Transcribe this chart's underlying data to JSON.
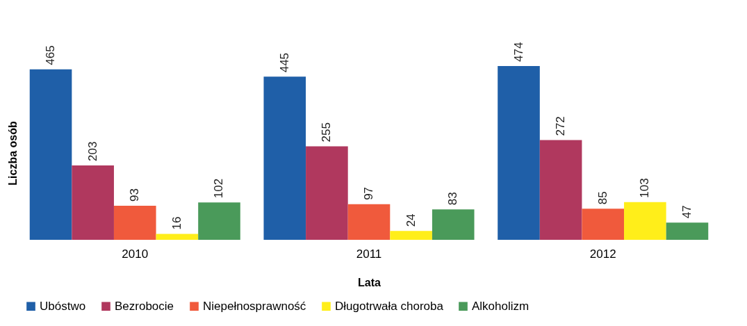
{
  "chart_data": {
    "type": "bar",
    "xlabel": "Lata",
    "ylabel": "Liczba osób",
    "categories": [
      "2010",
      "2011",
      "2012"
    ],
    "series": [
      {
        "name": "Ubóstwo",
        "color": "#1f5fa8",
        "values": [
          465,
          445,
          474
        ]
      },
      {
        "name": "Bezrobocie",
        "color": "#b0385e",
        "values": [
          203,
          255,
          272
        ]
      },
      {
        "name": "Niepełnosprawność",
        "color": "#f05a3c",
        "values": [
          93,
          97,
          85
        ]
      },
      {
        "name": "Długotrwała choroba",
        "color": "#ffee1a",
        "values": [
          16,
          24,
          103
        ]
      },
      {
        "name": "Alkoholizm",
        "color": "#4a9a5a",
        "values": [
          102,
          83,
          47
        ]
      }
    ],
    "data_labels": true,
    "legend": "bottom",
    "tick_labels": "x",
    "grid": false
  }
}
